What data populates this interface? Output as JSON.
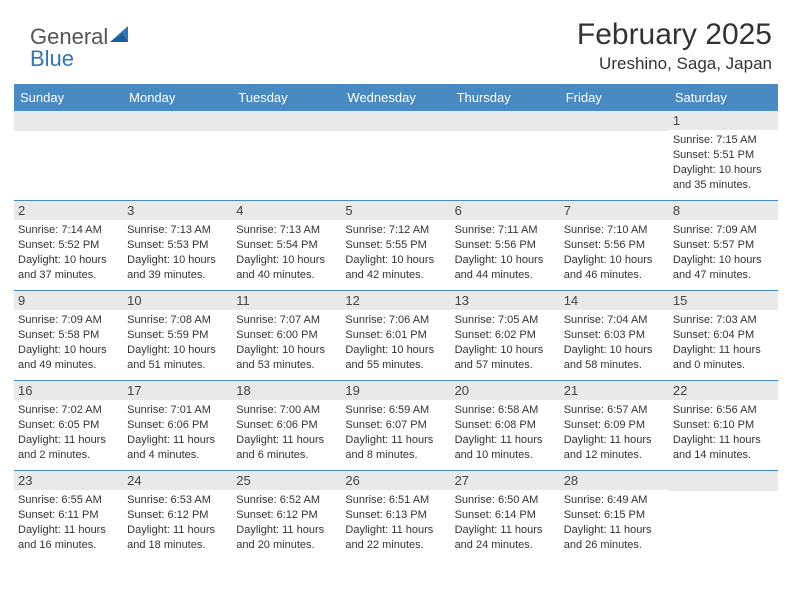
{
  "logo": {
    "text1": "General",
    "text2": "Blue"
  },
  "title": "February 2025",
  "location": "Ureshino, Saga, Japan",
  "colors": {
    "header_bg": "#4a8ac2",
    "header_text": "#ffffff",
    "daynum_bg": "#e9e9e9",
    "border": "#4a8ac2",
    "body_text": "#333333"
  },
  "weekdays": [
    "Sunday",
    "Monday",
    "Tuesday",
    "Wednesday",
    "Thursday",
    "Friday",
    "Saturday"
  ],
  "weeks": [
    [
      {
        "n": "",
        "sr": "",
        "ss": "",
        "dl": ""
      },
      {
        "n": "",
        "sr": "",
        "ss": "",
        "dl": ""
      },
      {
        "n": "",
        "sr": "",
        "ss": "",
        "dl": ""
      },
      {
        "n": "",
        "sr": "",
        "ss": "",
        "dl": ""
      },
      {
        "n": "",
        "sr": "",
        "ss": "",
        "dl": ""
      },
      {
        "n": "",
        "sr": "",
        "ss": "",
        "dl": ""
      },
      {
        "n": "1",
        "sr": "Sunrise: 7:15 AM",
        "ss": "Sunset: 5:51 PM",
        "dl": "Daylight: 10 hours and 35 minutes."
      }
    ],
    [
      {
        "n": "2",
        "sr": "Sunrise: 7:14 AM",
        "ss": "Sunset: 5:52 PM",
        "dl": "Daylight: 10 hours and 37 minutes."
      },
      {
        "n": "3",
        "sr": "Sunrise: 7:13 AM",
        "ss": "Sunset: 5:53 PM",
        "dl": "Daylight: 10 hours and 39 minutes."
      },
      {
        "n": "4",
        "sr": "Sunrise: 7:13 AM",
        "ss": "Sunset: 5:54 PM",
        "dl": "Daylight: 10 hours and 40 minutes."
      },
      {
        "n": "5",
        "sr": "Sunrise: 7:12 AM",
        "ss": "Sunset: 5:55 PM",
        "dl": "Daylight: 10 hours and 42 minutes."
      },
      {
        "n": "6",
        "sr": "Sunrise: 7:11 AM",
        "ss": "Sunset: 5:56 PM",
        "dl": "Daylight: 10 hours and 44 minutes."
      },
      {
        "n": "7",
        "sr": "Sunrise: 7:10 AM",
        "ss": "Sunset: 5:56 PM",
        "dl": "Daylight: 10 hours and 46 minutes."
      },
      {
        "n": "8",
        "sr": "Sunrise: 7:09 AM",
        "ss": "Sunset: 5:57 PM",
        "dl": "Daylight: 10 hours and 47 minutes."
      }
    ],
    [
      {
        "n": "9",
        "sr": "Sunrise: 7:09 AM",
        "ss": "Sunset: 5:58 PM",
        "dl": "Daylight: 10 hours and 49 minutes."
      },
      {
        "n": "10",
        "sr": "Sunrise: 7:08 AM",
        "ss": "Sunset: 5:59 PM",
        "dl": "Daylight: 10 hours and 51 minutes."
      },
      {
        "n": "11",
        "sr": "Sunrise: 7:07 AM",
        "ss": "Sunset: 6:00 PM",
        "dl": "Daylight: 10 hours and 53 minutes."
      },
      {
        "n": "12",
        "sr": "Sunrise: 7:06 AM",
        "ss": "Sunset: 6:01 PM",
        "dl": "Daylight: 10 hours and 55 minutes."
      },
      {
        "n": "13",
        "sr": "Sunrise: 7:05 AM",
        "ss": "Sunset: 6:02 PM",
        "dl": "Daylight: 10 hours and 57 minutes."
      },
      {
        "n": "14",
        "sr": "Sunrise: 7:04 AM",
        "ss": "Sunset: 6:03 PM",
        "dl": "Daylight: 10 hours and 58 minutes."
      },
      {
        "n": "15",
        "sr": "Sunrise: 7:03 AM",
        "ss": "Sunset: 6:04 PM",
        "dl": "Daylight: 11 hours and 0 minutes."
      }
    ],
    [
      {
        "n": "16",
        "sr": "Sunrise: 7:02 AM",
        "ss": "Sunset: 6:05 PM",
        "dl": "Daylight: 11 hours and 2 minutes."
      },
      {
        "n": "17",
        "sr": "Sunrise: 7:01 AM",
        "ss": "Sunset: 6:06 PM",
        "dl": "Daylight: 11 hours and 4 minutes."
      },
      {
        "n": "18",
        "sr": "Sunrise: 7:00 AM",
        "ss": "Sunset: 6:06 PM",
        "dl": "Daylight: 11 hours and 6 minutes."
      },
      {
        "n": "19",
        "sr": "Sunrise: 6:59 AM",
        "ss": "Sunset: 6:07 PM",
        "dl": "Daylight: 11 hours and 8 minutes."
      },
      {
        "n": "20",
        "sr": "Sunrise: 6:58 AM",
        "ss": "Sunset: 6:08 PM",
        "dl": "Daylight: 11 hours and 10 minutes."
      },
      {
        "n": "21",
        "sr": "Sunrise: 6:57 AM",
        "ss": "Sunset: 6:09 PM",
        "dl": "Daylight: 11 hours and 12 minutes."
      },
      {
        "n": "22",
        "sr": "Sunrise: 6:56 AM",
        "ss": "Sunset: 6:10 PM",
        "dl": "Daylight: 11 hours and 14 minutes."
      }
    ],
    [
      {
        "n": "23",
        "sr": "Sunrise: 6:55 AM",
        "ss": "Sunset: 6:11 PM",
        "dl": "Daylight: 11 hours and 16 minutes."
      },
      {
        "n": "24",
        "sr": "Sunrise: 6:53 AM",
        "ss": "Sunset: 6:12 PM",
        "dl": "Daylight: 11 hours and 18 minutes."
      },
      {
        "n": "25",
        "sr": "Sunrise: 6:52 AM",
        "ss": "Sunset: 6:12 PM",
        "dl": "Daylight: 11 hours and 20 minutes."
      },
      {
        "n": "26",
        "sr": "Sunrise: 6:51 AM",
        "ss": "Sunset: 6:13 PM",
        "dl": "Daylight: 11 hours and 22 minutes."
      },
      {
        "n": "27",
        "sr": "Sunrise: 6:50 AM",
        "ss": "Sunset: 6:14 PM",
        "dl": "Daylight: 11 hours and 24 minutes."
      },
      {
        "n": "28",
        "sr": "Sunrise: 6:49 AM",
        "ss": "Sunset: 6:15 PM",
        "dl": "Daylight: 11 hours and 26 minutes."
      },
      {
        "n": "",
        "sr": "",
        "ss": "",
        "dl": ""
      }
    ]
  ]
}
